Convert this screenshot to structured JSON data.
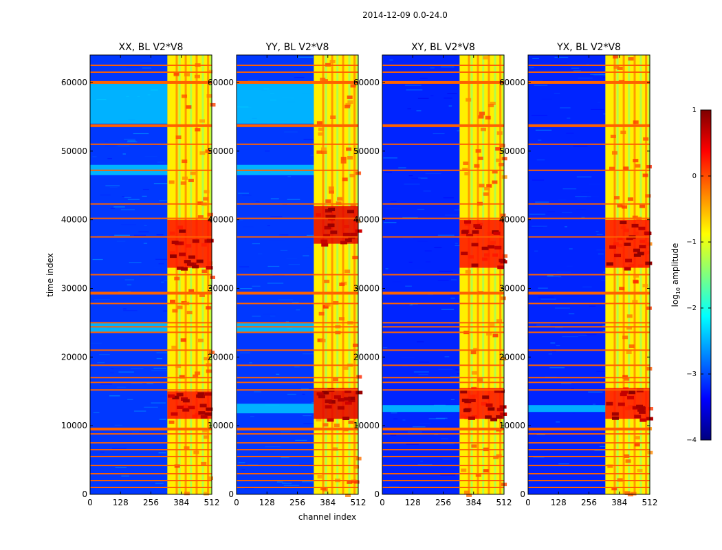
{
  "figure": {
    "suptitle": "2014-12-09 0.0-24.0",
    "xlabel": "channel index",
    "ylabel": "time index"
  },
  "colors": {
    "background": "#ffffff",
    "axis": "#000000",
    "colormap": [
      "#00007f",
      "#0000ff",
      "#007fff",
      "#00ffff",
      "#7fff7f",
      "#ffff00",
      "#ff7f00",
      "#ff0000",
      "#7f0000"
    ]
  },
  "colorbar": {
    "label": "log10 amplitude",
    "label_base": "log",
    "label_sub": "10",
    "label_rest": " amplitude",
    "range": [
      -4,
      1
    ],
    "ticks": [
      {
        "value": 1,
        "label": "1"
      },
      {
        "value": 0,
        "label": "0"
      },
      {
        "value": -1,
        "label": "−1"
      },
      {
        "value": -2,
        "label": "−2"
      },
      {
        "value": -3,
        "label": "−3"
      },
      {
        "value": -4,
        "label": "−4"
      }
    ]
  },
  "chart_data": [
    {
      "type": "heatmap",
      "title": "XX, BL V2*V8",
      "polarization": "XX",
      "xlabel": "",
      "ylabel": "time index",
      "xlim": [
        0,
        512
      ],
      "ylim": [
        0,
        64000
      ],
      "xticks": [
        0,
        128,
        256,
        384,
        512
      ],
      "yticks": [
        0,
        10000,
        20000,
        30000,
        40000,
        50000,
        60000
      ],
      "value_range": [
        -4,
        1
      ],
      "background_level": -3.1,
      "band_start_channel": 325,
      "band_level": -0.8,
      "strong_time_ranges": [
        [
          11000,
          15000
        ],
        [
          33000,
          40000
        ]
      ],
      "strong_level": 0.3,
      "low_channel_rfi_time_ranges": [
        [
          54000,
          60000
        ],
        [
          46500,
          48000
        ],
        [
          23500,
          25000
        ]
      ]
    },
    {
      "type": "heatmap",
      "title": "YY, BL V2*V8",
      "polarization": "YY",
      "xlabel": "channel index",
      "ylabel": "",
      "xlim": [
        0,
        512
      ],
      "ylim": [
        0,
        64000
      ],
      "xticks": [
        0,
        128,
        256,
        384,
        512
      ],
      "yticks": [
        0,
        10000,
        20000,
        30000,
        40000,
        50000,
        60000
      ],
      "value_range": [
        -4,
        1
      ],
      "background_level": -3.1,
      "band_start_channel": 325,
      "band_level": -0.8,
      "strong_time_ranges": [
        [
          11000,
          15500
        ],
        [
          36500,
          42000
        ]
      ],
      "strong_level": 0.5,
      "low_channel_rfi_time_ranges": [
        [
          54000,
          60000
        ],
        [
          46500,
          48000
        ],
        [
          23500,
          25000
        ],
        [
          11800,
          13200
        ]
      ]
    },
    {
      "type": "heatmap",
      "title": "XY, BL V2*V8",
      "polarization": "XY",
      "xlabel": "",
      "ylabel": "",
      "xlim": [
        0,
        512
      ],
      "ylim": [
        0,
        64000
      ],
      "xticks": [
        0,
        128,
        256,
        384,
        512
      ],
      "yticks": [
        0,
        10000,
        20000,
        30000,
        40000,
        50000,
        60000
      ],
      "value_range": [
        -4,
        1
      ],
      "background_level": -3.2,
      "band_start_channel": 325,
      "band_level": -0.8,
      "strong_time_ranges": [
        [
          11000,
          15500
        ],
        [
          33000,
          40000
        ]
      ],
      "strong_level": 0.3,
      "low_channel_rfi_time_ranges": [
        [
          12000,
          13000
        ]
      ]
    },
    {
      "type": "heatmap",
      "title": "YX, BL V2*V8",
      "polarization": "YX",
      "xlabel": "",
      "ylabel": "",
      "xlim": [
        0,
        512
      ],
      "ylim": [
        0,
        64000
      ],
      "xticks": [
        0,
        128,
        256,
        384,
        512
      ],
      "yticks": [
        0,
        10000,
        20000,
        30000,
        40000,
        50000,
        60000
      ],
      "value_range": [
        -4,
        1
      ],
      "background_level": -3.2,
      "band_start_channel": 325,
      "band_level": -0.8,
      "strong_time_ranges": [
        [
          11000,
          15500
        ],
        [
          33000,
          40000
        ]
      ],
      "strong_level": 0.3,
      "low_channel_rfi_time_ranges": [
        [
          12000,
          13000
        ]
      ]
    }
  ],
  "rfi_time_lines": [
    1000,
    2000,
    3000,
    4200,
    5500,
    6500,
    7500,
    8800,
    9600,
    15200,
    16300,
    17000,
    18800,
    21000,
    23600,
    24400,
    25000,
    27800,
    29400,
    32000,
    37500,
    40200,
    42300,
    47200,
    51000,
    53800,
    60100,
    61500,
    62500
  ]
}
